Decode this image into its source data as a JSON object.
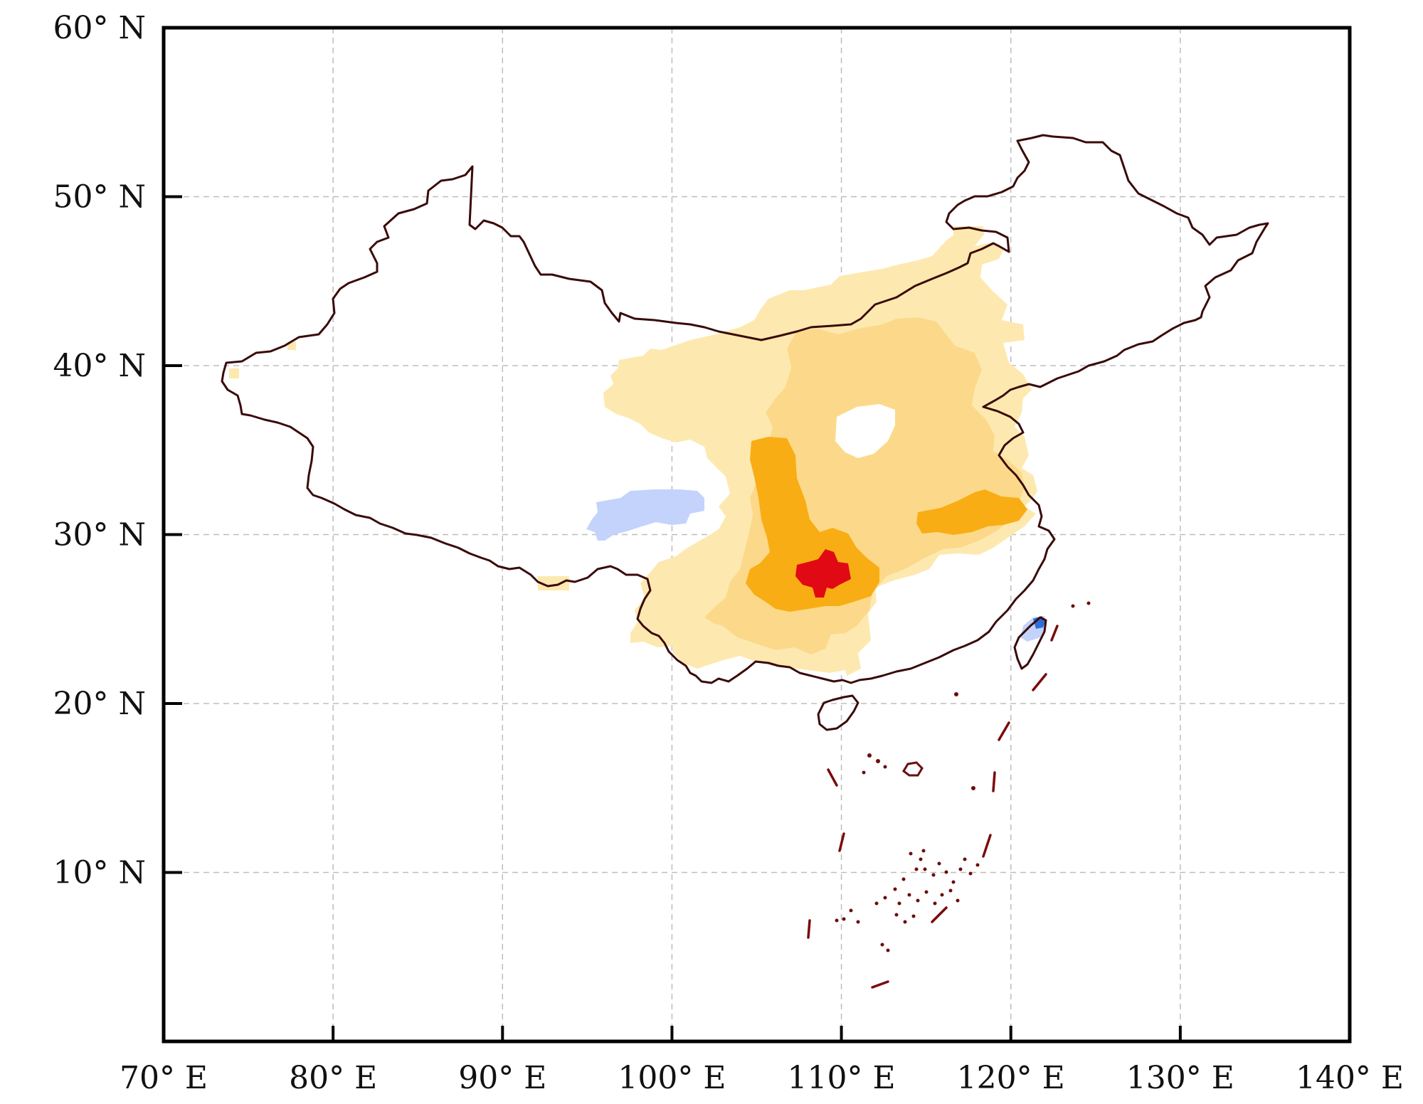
{
  "map": {
    "x_ticks": [
      {
        "lon": 70,
        "label": "70° E"
      },
      {
        "lon": 80,
        "label": "80° E"
      },
      {
        "lon": 90,
        "label": "90° E"
      },
      {
        "lon": 100,
        "label": "100° E"
      },
      {
        "lon": 110,
        "label": "110° E"
      },
      {
        "lon": 120,
        "label": "120° E"
      },
      {
        "lon": 130,
        "label": "130° E"
      },
      {
        "lon": 140,
        "label": "140° E"
      }
    ],
    "y_ticks": [
      {
        "lat": 60,
        "label": "60° N"
      },
      {
        "lat": 50,
        "label": "50° N"
      },
      {
        "lat": 40,
        "label": "40° N"
      },
      {
        "lat": 30,
        "label": "30° N"
      },
      {
        "lat": 20,
        "label": "20° N"
      },
      {
        "lat": 10,
        "label": "10° N"
      }
    ],
    "lon_range": [
      70,
      140
    ],
    "lat_range": [
      0,
      60
    ],
    "grid": "dashed",
    "legend": "none",
    "colors": {
      "pale_yellow": "#fde9b0",
      "light_orange": "#fcd98a",
      "orange": "#f9ad14",
      "dark_orange": "#f5a300",
      "red": "#e10a14",
      "light_blue": "#c3d3fb",
      "blue": "#2e6fd8",
      "border": "#3a0a0a",
      "frame": "#000000",
      "grid": "#bdbdbd"
    }
  }
}
